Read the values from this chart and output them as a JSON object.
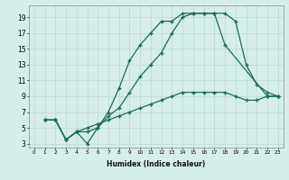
{
  "xlabel": "Humidex (Indice chaleur)",
  "xlim": [
    -0.5,
    23.5
  ],
  "ylim": [
    2.5,
    20.5
  ],
  "xticks": [
    0,
    1,
    2,
    3,
    4,
    5,
    6,
    7,
    8,
    9,
    10,
    11,
    12,
    13,
    14,
    15,
    16,
    17,
    18,
    19,
    20,
    21,
    22,
    23
  ],
  "yticks": [
    3,
    5,
    7,
    9,
    11,
    13,
    15,
    17,
    19
  ],
  "bg_color": "#d6eeea",
  "grid_color": "#b8d8d2",
  "line_color": "#1a6b5a",
  "line1_x": [
    1,
    2,
    3,
    4,
    5,
    6,
    7,
    8,
    9,
    10,
    11,
    12,
    13,
    14,
    15,
    16,
    17,
    18,
    22,
    23
  ],
  "line1_y": [
    6,
    6,
    3.5,
    4.5,
    3,
    5,
    7,
    10,
    13.5,
    15.5,
    17.0,
    18.5,
    18.5,
    19.5,
    19.5,
    19.5,
    19.5,
    15.5,
    9,
    9
  ],
  "line2_x": [
    1,
    2,
    3,
    4,
    5,
    6,
    7,
    8,
    9,
    10,
    11,
    12,
    13,
    14,
    15,
    16,
    17,
    18,
    19,
    20,
    21,
    22,
    23
  ],
  "line2_y": [
    6,
    6,
    3.5,
    4.5,
    4.5,
    5,
    6.5,
    7.5,
    9.5,
    11.5,
    13,
    14.5,
    17,
    19,
    19.5,
    19.5,
    19.5,
    19.5,
    18.5,
    13,
    10.5,
    9.5,
    9
  ],
  "line3_x": [
    1,
    2,
    3,
    4,
    5,
    6,
    7,
    8,
    9,
    10,
    11,
    12,
    13,
    14,
    15,
    16,
    17,
    18,
    19,
    20,
    21,
    22,
    23
  ],
  "line3_y": [
    6,
    6,
    3.5,
    4.5,
    5,
    5.5,
    6,
    6.5,
    7,
    7.5,
    8,
    8.5,
    9,
    9.5,
    9.5,
    9.5,
    9.5,
    9.5,
    9,
    8.5,
    8.5,
    9,
    9
  ]
}
